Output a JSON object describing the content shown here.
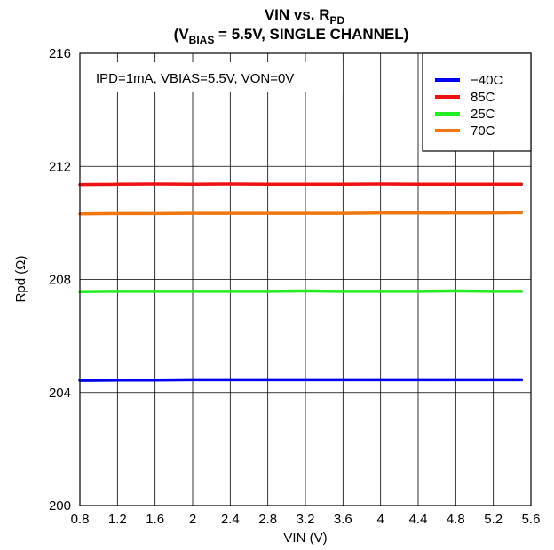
{
  "chart_data": {
    "type": "line",
    "title_line1_main": "VIN vs. R",
    "title_line1_sub": "PD",
    "title_line2_prefix": "(V",
    "title_line2_sub": "BIAS",
    "title_line2_rest": " = 5.5V, SINGLE CHANNEL)",
    "xlabel": "VIN (V)",
    "ylabel": "Rpd (Ω)",
    "xlim": [
      0.8,
      5.6
    ],
    "ylim": [
      200,
      216
    ],
    "xticks": [
      "0.8",
      "1.2",
      "1.6",
      "2",
      "2.4",
      "2.8",
      "3.2",
      "3.6",
      "4",
      "4.4",
      "4.8",
      "5.2",
      "5.6"
    ],
    "yticks": [
      "200",
      "204",
      "208",
      "212",
      "216"
    ],
    "grid": true,
    "legend_position": "top-right",
    "annotation": "IPD=1mA, VBIAS=5.5V, VON=0V",
    "x": [
      0.8,
      1.2,
      1.6,
      2.0,
      2.4,
      2.8,
      3.2,
      3.6,
      4.0,
      4.4,
      4.8,
      5.2,
      5.5
    ],
    "series": [
      {
        "name": "−40C",
        "color": "#0000ee",
        "values": [
          204.43,
          204.44,
          204.44,
          204.45,
          204.45,
          204.45,
          204.45,
          204.45,
          204.45,
          204.45,
          204.45,
          204.45,
          204.45
        ]
      },
      {
        "name": "85C",
        "color": "#ee1111",
        "values": [
          211.36,
          211.37,
          211.38,
          211.37,
          211.38,
          211.37,
          211.37,
          211.37,
          211.38,
          211.37,
          211.37,
          211.37,
          211.37
        ]
      },
      {
        "name": "25C",
        "color": "#22ee22",
        "values": [
          207.57,
          207.58,
          207.58,
          207.58,
          207.58,
          207.58,
          207.59,
          207.58,
          207.58,
          207.58,
          207.59,
          207.58,
          207.58
        ]
      },
      {
        "name": "70C",
        "color": "#ee7711",
        "values": [
          210.32,
          210.33,
          210.33,
          210.34,
          210.34,
          210.34,
          210.34,
          210.34,
          210.35,
          210.35,
          210.35,
          210.35,
          210.36
        ]
      }
    ]
  }
}
